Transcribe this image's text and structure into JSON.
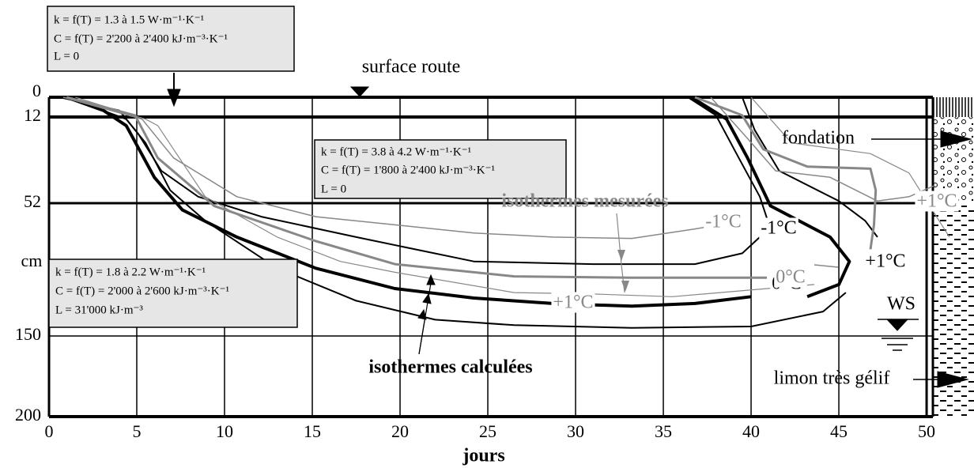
{
  "chart_data": {
    "type": "line",
    "xlabel": "jours",
    "ylabel": "cm",
    "xlim": [
      0,
      52.7
    ],
    "xticks": [
      0,
      5,
      10,
      15,
      20,
      25,
      30,
      35,
      40,
      45,
      50
    ],
    "ylim": [
      0,
      200
    ],
    "yticks": [
      0,
      12,
      52,
      150,
      200
    ],
    "grid": true,
    "series": [
      {
        "name": "-1°C",
        "color": "#000000",
        "x": [
          0.6,
          4.0,
          5.1,
          6.4,
          8.5,
          12.1,
          17.5,
          24.2,
          31.0,
          36.8,
          39.5,
          40.5,
          null,
          36.4,
          38.0,
          39.3,
          40.5,
          41.1
        ],
        "values": [
          0,
          8,
          20,
          37,
          49,
          62,
          77,
          95,
          97,
          97,
          89,
          77,
          null,
          0,
          11,
          31,
          49,
          71
        ]
      },
      {
        "name": "0°C",
        "color": "#000000",
        "x": [
          1.0,
          3.1,
          4.4,
          6.0,
          7.6,
          10.7,
          15.2,
          19.7,
          24.2,
          28.7,
          33.2,
          36.8,
          40.0,
          null,
          36.6,
          38.6,
          39.8,
          41.1,
          44.5,
          45.6,
          45.0,
          43.2
        ],
        "values": [
          0,
          8,
          16,
          40,
          57,
          77,
          100,
          115,
          122,
          126,
          128,
          126,
          121,
          null,
          0,
          13,
          31,
          54,
          77,
          95,
          112,
          121
        ]
      },
      {
        "name": "+1°C",
        "color": "#000000",
        "x": [
          1.0,
          4.4,
          5.5,
          6.9,
          8.9,
          13.0,
          17.5,
          22.0,
          26.5,
          33.2,
          40.0,
          44.1,
          45.4,
          null,
          39.5,
          40.2,
          41.6,
          45.0,
          46.5,
          47.2
        ],
        "values": [
          0,
          13,
          24,
          46,
          65,
          100,
          124,
          138,
          142,
          144,
          143,
          132,
          118,
          null,
          0,
          18,
          37,
          51,
          65,
          77
        ]
      },
      {
        "name": "-1°C",
        "color": "#888888",
        "x": [
          0.8,
          5.3,
          7.1,
          10.7,
          15.2,
          19.7,
          24.2,
          28.7,
          33.2,
          36.8,
          38.6,
          null,
          37.7,
          39.8,
          41.4,
          44.5,
          47.2,
          49.0,
          50.4
        ],
        "values": [
          0,
          13,
          31,
          49,
          62,
          68,
          74,
          77,
          78,
          71,
          67,
          null,
          0,
          22,
          37,
          40,
          51,
          49,
          44
        ]
      },
      {
        "name": "0°C",
        "color": "#888888",
        "x": [
          1.0,
          4.9,
          6.2,
          9.4,
          15.2,
          19.7,
          26.5,
          33.2,
          40.9,
          null,
          36.8,
          39.5,
          40.7,
          43.2,
          46.8,
          47.1,
          47.0,
          46.8
        ],
        "values": [
          0,
          11,
          31,
          54,
          80,
          97,
          106,
          107,
          107,
          null,
          0,
          11,
          27,
          35,
          36,
          46,
          68,
          86
        ]
      },
      {
        "name": "+1°C",
        "color": "#888888",
        "x": [
          1.5,
          5.5,
          6.2,
          8.9,
          13.0,
          16.6,
          19.7,
          26.5,
          31.0,
          35.5,
          43.6,
          null,
          40.0,
          42.3,
          46.8,
          49.0,
          51.3
        ],
        "values": [
          0,
          13,
          16,
          49,
          77,
          95,
          103,
          118,
          119,
          121,
          112,
          null,
          0,
          24,
          29,
          38,
          77
        ]
      }
    ],
    "annotations": {
      "calculated": "isothermes calculées",
      "measured": "isothermes mesurées",
      "surface": "surface route",
      "foundation": "fondation",
      "silt": "limon très gélif",
      "water": "WS"
    },
    "layers": [
      [
        "k = f(T) = 1.3 à 1.5 W·m⁻¹·K⁻¹",
        "C = f(T) = 2'200 à 2'400 kJ·m⁻³·K⁻¹",
        "L = 0"
      ],
      [
        "k = f(T) = 3.8 à 4.2 W·m⁻¹·K⁻¹",
        "C = f(T) = 1'800 à 2'400 kJ·m⁻³·K⁻¹",
        "L = 0"
      ],
      [
        "k = f(T) = 1.8 à 2.2 W·m⁻¹·K⁻¹",
        "C = f(T) = 2'000 à 2'600 kJ·m⁻³·K⁻¹",
        "L = 31'000 kJ·m⁻³"
      ]
    ]
  }
}
